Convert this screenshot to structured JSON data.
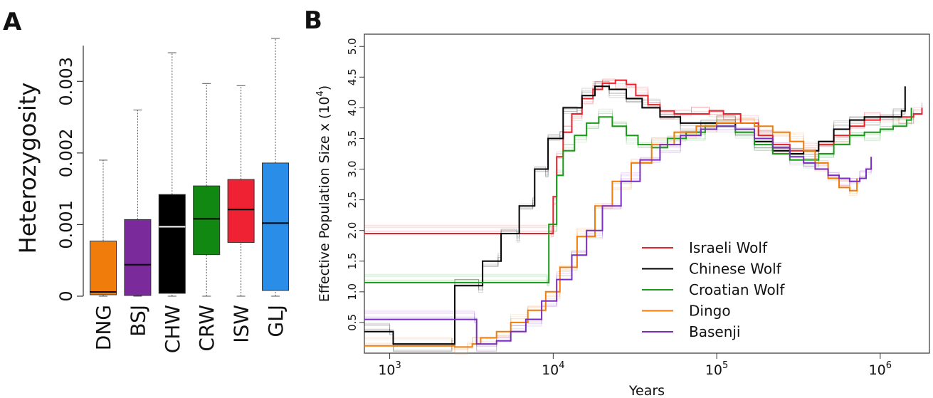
{
  "panels": {
    "a": "A",
    "b": "B"
  },
  "chart_data": [
    {
      "type": "boxplot",
      "panel": "A",
      "xlabel": "",
      "ylabel": "Heterozygosity",
      "ylim": [
        0,
        0.0035
      ],
      "yticks": [
        {
          "value": 0,
          "label": "0"
        },
        {
          "value": 0.001,
          "label": "0.001"
        },
        {
          "value": 0.002,
          "label": "0.002"
        },
        {
          "value": 0.003,
          "label": "0.003"
        }
      ],
      "boxes": [
        {
          "name": "DNG",
          "color": "#f07d0b",
          "median_color": "#000000",
          "min": 0.0,
          "q1": 2e-05,
          "median": 6e-05,
          "q3": 0.00077,
          "max": 0.0019
        },
        {
          "name": "BSJ",
          "color": "#7a2a9a",
          "median_color": "#000000",
          "min": 0.0,
          "q1": 1e-05,
          "median": 0.00044,
          "q3": 0.00107,
          "max": 0.0026
        },
        {
          "name": "CHW",
          "color": "#000000",
          "median_color": "#ffffff",
          "min": 0.0,
          "q1": 4e-05,
          "median": 0.00097,
          "q3": 0.00142,
          "max": 0.0034
        },
        {
          "name": "CRW",
          "color": "#118811",
          "median_color": "#000000",
          "min": 0.0,
          "q1": 0.00058,
          "median": 0.00108,
          "q3": 0.00154,
          "max": 0.00297
        },
        {
          "name": "ISW",
          "color": "#ee2233",
          "median_color": "#000000",
          "min": 0.0,
          "q1": 0.00075,
          "median": 0.00121,
          "q3": 0.00163,
          "max": 0.00294
        },
        {
          "name": "GLJ",
          "color": "#2a8de8",
          "median_color": "#000000",
          "min": 0.0,
          "q1": 8e-05,
          "median": 0.00102,
          "q3": 0.00186,
          "max": 0.0036
        }
      ]
    },
    {
      "type": "line",
      "panel": "B",
      "step": true,
      "xscale": "log",
      "xlabel": "Years",
      "ylabel_main": "Effective Population Size x (10",
      "ylabel_exp": "4",
      "ylabel_end": ")",
      "xlim": [
        700,
        2000000
      ],
      "ylim": [
        0,
        5.2
      ],
      "xticks": [
        {
          "value": 1000,
          "base": "10",
          "exp": "3"
        },
        {
          "value": 10000,
          "base": "10",
          "exp": "4"
        },
        {
          "value": 100000,
          "base": "10",
          "exp": "5"
        },
        {
          "value": 1000000,
          "base": "10",
          "exp": "6"
        }
      ],
      "yticks": [
        {
          "value": 0.5,
          "label": "0.5"
        },
        {
          "value": 1.0,
          "label": "1.0"
        },
        {
          "value": 1.5,
          "label": "1.5"
        },
        {
          "value": 2.0,
          "label": "2.0"
        },
        {
          "value": 2.5,
          "label": "2.5"
        },
        {
          "value": 3.0,
          "label": "3.0"
        },
        {
          "value": 3.5,
          "label": "3.5"
        },
        {
          "value": 4.0,
          "label": "4.0"
        },
        {
          "value": 4.5,
          "label": "4.5"
        },
        {
          "value": 5.0,
          "label": "5.0"
        }
      ],
      "legend_position": "bottom-right",
      "series": [
        {
          "name": "Israeli Wolf",
          "color": "#e8222a",
          "points": [
            [
              700,
              1.95
            ],
            [
              9700,
              1.95
            ],
            [
              10000,
              2.55
            ],
            [
              10500,
              3.2
            ],
            [
              11500,
              3.6
            ],
            [
              13000,
              3.9
            ],
            [
              15000,
              4.15
            ],
            [
              17500,
              4.3
            ],
            [
              20000,
              4.4
            ],
            [
              24000,
              4.45
            ],
            [
              28000,
              4.38
            ],
            [
              32000,
              4.2
            ],
            [
              38000,
              4.05
            ],
            [
              45000,
              3.95
            ],
            [
              55000,
              3.9
            ],
            [
              70000,
              3.9
            ],
            [
              90000,
              3.95
            ],
            [
              110000,
              3.9
            ],
            [
              140000,
              3.75
            ],
            [
              180000,
              3.55
            ],
            [
              220000,
              3.4
            ],
            [
              280000,
              3.3
            ],
            [
              340000,
              3.3
            ],
            [
              420000,
              3.4
            ],
            [
              520000,
              3.55
            ],
            [
              650000,
              3.7
            ],
            [
              800000,
              3.8
            ],
            [
              1000000,
              3.85
            ],
            [
              1300000,
              3.85
            ],
            [
              1600000,
              3.9
            ],
            [
              1800000,
              4.0
            ]
          ]
        },
        {
          "name": "Chinese Wolf",
          "color": "#000000",
          "points": [
            [
              700,
              0.35
            ],
            [
              1000,
              0.35
            ],
            [
              1050,
              0.15
            ],
            [
              2400,
              0.15
            ],
            [
              2500,
              1.1
            ],
            [
              3500,
              1.1
            ],
            [
              3700,
              1.5
            ],
            [
              4600,
              1.5
            ],
            [
              4800,
              1.95
            ],
            [
              6000,
              1.95
            ],
            [
              6200,
              2.4
            ],
            [
              7500,
              2.4
            ],
            [
              7700,
              3.0
            ],
            [
              9000,
              3.0
            ],
            [
              9300,
              3.5
            ],
            [
              11000,
              3.5
            ],
            [
              11500,
              4.0
            ],
            [
              14000,
              4.0
            ],
            [
              15000,
              4.2
            ],
            [
              18000,
              4.35
            ],
            [
              22000,
              4.3
            ],
            [
              28000,
              4.15
            ],
            [
              35000,
              4.0
            ],
            [
              45000,
              3.85
            ],
            [
              60000,
              3.75
            ],
            [
              80000,
              3.75
            ],
            [
              100000,
              3.75
            ],
            [
              130000,
              3.65
            ],
            [
              170000,
              3.45
            ],
            [
              220000,
              3.3
            ],
            [
              280000,
              3.25
            ],
            [
              340000,
              3.3
            ],
            [
              420000,
              3.45
            ],
            [
              520000,
              3.65
            ],
            [
              650000,
              3.8
            ],
            [
              800000,
              3.85
            ],
            [
              1000000,
              3.85
            ],
            [
              1200000,
              3.85
            ],
            [
              1350000,
              3.95
            ],
            [
              1420000,
              4.35
            ]
          ]
        },
        {
          "name": "Croatian Wolf",
          "color": "#179a17",
          "points": [
            [
              700,
              1.15
            ],
            [
              9200,
              1.15
            ],
            [
              9400,
              2.1
            ],
            [
              10500,
              2.9
            ],
            [
              11500,
              3.3
            ],
            [
              13500,
              3.55
            ],
            [
              16000,
              3.75
            ],
            [
              19000,
              3.85
            ],
            [
              23000,
              3.7
            ],
            [
              28000,
              3.55
            ],
            [
              33000,
              3.4
            ],
            [
              40000,
              3.35
            ],
            [
              50000,
              3.5
            ],
            [
              65000,
              3.6
            ],
            [
              85000,
              3.7
            ],
            [
              100000,
              3.7
            ],
            [
              130000,
              3.6
            ],
            [
              170000,
              3.4
            ],
            [
              220000,
              3.25
            ],
            [
              280000,
              3.15
            ],
            [
              340000,
              3.15
            ],
            [
              420000,
              3.25
            ],
            [
              520000,
              3.4
            ],
            [
              650000,
              3.55
            ],
            [
              800000,
              3.6
            ],
            [
              1000000,
              3.65
            ],
            [
              1200000,
              3.7
            ],
            [
              1450000,
              3.8
            ],
            [
              1550000,
              4.0
            ]
          ]
        },
        {
          "name": "Dingo",
          "color": "#f07d0b",
          "points": [
            [
              700,
              0.12
            ],
            [
              2400,
              0.12
            ],
            [
              2500,
              0.1
            ],
            [
              3000,
              0.1
            ],
            [
              3200,
              0.15
            ],
            [
              3600,
              0.25
            ],
            [
              4500,
              0.35
            ],
            [
              5500,
              0.5
            ],
            [
              7000,
              0.7
            ],
            [
              9000,
              1.0
            ],
            [
              11000,
              1.4
            ],
            [
              14000,
              1.9
            ],
            [
              18000,
              2.4
            ],
            [
              23000,
              2.8
            ],
            [
              30000,
              3.1
            ],
            [
              40000,
              3.4
            ],
            [
              55000,
              3.6
            ],
            [
              75000,
              3.7
            ],
            [
              100000,
              3.75
            ],
            [
              130000,
              3.75
            ],
            [
              170000,
              3.7
            ],
            [
              220000,
              3.6
            ],
            [
              280000,
              3.45
            ],
            [
              340000,
              3.3
            ],
            [
              400000,
              3.1
            ],
            [
              480000,
              2.85
            ],
            [
              560000,
              2.7
            ],
            [
              650000,
              2.65
            ],
            [
              720000,
              2.85
            ]
          ]
        },
        {
          "name": "Basenji",
          "color": "#7a2ec0",
          "points": [
            [
              700,
              0.55
            ],
            [
              3300,
              0.55
            ],
            [
              3400,
              0.15
            ],
            [
              4500,
              0.2
            ],
            [
              5500,
              0.35
            ],
            [
              6800,
              0.55
            ],
            [
              8500,
              0.85
            ],
            [
              10500,
              1.2
            ],
            [
              13000,
              1.6
            ],
            [
              16000,
              2.0
            ],
            [
              20000,
              2.4
            ],
            [
              26000,
              2.8
            ],
            [
              34000,
              3.15
            ],
            [
              45000,
              3.4
            ],
            [
              60000,
              3.55
            ],
            [
              80000,
              3.65
            ],
            [
              100000,
              3.7
            ],
            [
              130000,
              3.65
            ],
            [
              170000,
              3.5
            ],
            [
              220000,
              3.35
            ],
            [
              280000,
              3.2
            ],
            [
              340000,
              3.1
            ],
            [
              400000,
              3.0
            ],
            [
              480000,
              2.9
            ],
            [
              560000,
              2.85
            ],
            [
              650000,
              2.8
            ],
            [
              750000,
              2.85
            ],
            [
              820000,
              3.0
            ],
            [
              880000,
              3.2
            ]
          ]
        }
      ]
    }
  ]
}
